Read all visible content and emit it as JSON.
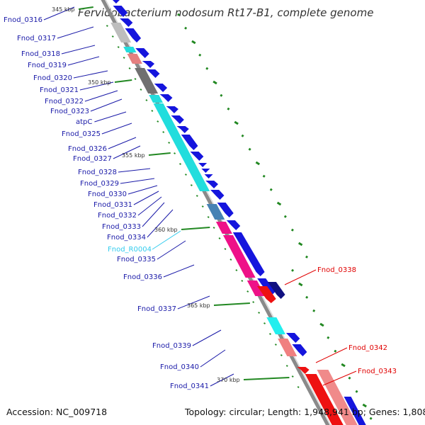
{
  "title": "Fervidobacterium nodosum Rt17-B1, complete genome",
  "footer": {
    "accession": "Accession: NC_009718",
    "summary": "Topology: circular; Length: 1,948,941 bp; Genes: 1,808"
  },
  "colors": {
    "backbone": "#8a8a8a",
    "forward_label": "#1a1aa8",
    "reverse_label": "#e00000",
    "rna_label": "#33ccee",
    "tick": "#228822"
  },
  "kbp_labels": [
    "345 kbp",
    "350 kbp",
    "355 kbp",
    "360 kbp",
    "365 kbp",
    "370 kbp"
  ],
  "left_labels": [
    {
      "text": "Fnod_0316",
      "color": "forward"
    },
    {
      "text": "Fnod_0317",
      "color": "forward"
    },
    {
      "text": "Fnod_0318",
      "color": "forward"
    },
    {
      "text": "Fnod_0319",
      "color": "forward"
    },
    {
      "text": "Fnod_0320",
      "color": "forward"
    },
    {
      "text": "Fnod_0321",
      "color": "forward"
    },
    {
      "text": "Fnod_0322",
      "color": "forward"
    },
    {
      "text": "Fnod_0323",
      "color": "forward"
    },
    {
      "text": "atpC",
      "color": "forward"
    },
    {
      "text": "Fnod_0325",
      "color": "forward"
    },
    {
      "text": "Fnod_0326",
      "color": "forward"
    },
    {
      "text": "Fnod_0327",
      "color": "forward"
    },
    {
      "text": "Fnod_0328",
      "color": "forward"
    },
    {
      "text": "Fnod_0329",
      "color": "forward"
    },
    {
      "text": "Fnod_0330",
      "color": "forward"
    },
    {
      "text": "Fnod_0331",
      "color": "forward"
    },
    {
      "text": "Fnod_0332",
      "color": "forward"
    },
    {
      "text": "Fnod_0333",
      "color": "forward"
    },
    {
      "text": "Fnod_0334",
      "color": "forward"
    },
    {
      "text": "Fnod_R0004",
      "color": "rna"
    },
    {
      "text": "Fnod_0335",
      "color": "forward"
    },
    {
      "text": "Fnod_0336",
      "color": "forward"
    },
    {
      "text": "Fnod_0337",
      "color": "forward"
    },
    {
      "text": "Fnod_0339",
      "color": "forward"
    },
    {
      "text": "Fnod_0340",
      "color": "forward"
    },
    {
      "text": "Fnod_0341",
      "color": "forward"
    }
  ],
  "right_labels": [
    {
      "text": "Fnod_0338",
      "color": "reverse"
    },
    {
      "text": "Fnod_0342",
      "color": "reverse"
    },
    {
      "text": "Fnod_0343",
      "color": "reverse"
    }
  ]
}
